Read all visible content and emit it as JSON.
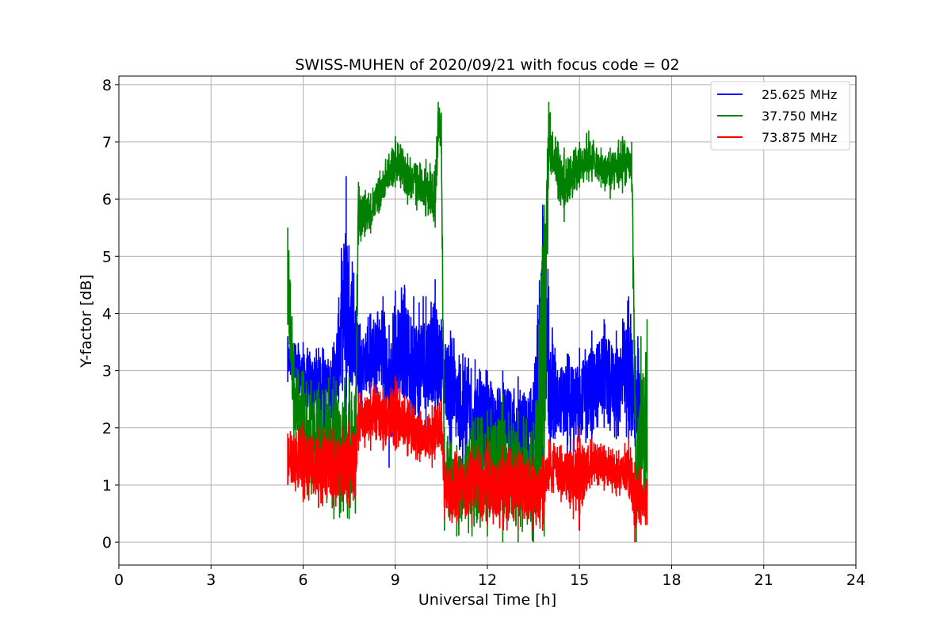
{
  "chart_data": {
    "type": "line",
    "title": "SWISS-MUHEN of 2020/09/21 with focus code = 02",
    "xlabel": "Universal Time [h]",
    "ylabel": "Y-factor [dB]",
    "xlim": [
      0,
      24
    ],
    "ylim": [
      -0.4,
      8.15
    ],
    "xticks": [
      0,
      3,
      6,
      9,
      12,
      15,
      18,
      21,
      24
    ],
    "yticks": [
      0,
      1,
      2,
      3,
      4,
      5,
      6,
      7,
      8
    ],
    "grid": true,
    "legend_position": "top-right",
    "series": [
      {
        "name": "25.625 MHz",
        "color": "#0000ff",
        "envelope": [
          [
            5.5,
            2.8,
            3.6
          ],
          [
            6.0,
            2.2,
            3.5
          ],
          [
            6.5,
            2.0,
            3.4
          ],
          [
            7.0,
            1.9,
            3.5
          ],
          [
            7.4,
            2.2,
            6.4
          ],
          [
            7.8,
            2.4,
            3.8
          ],
          [
            8.2,
            2.4,
            4.0
          ],
          [
            8.6,
            2.5,
            4.3
          ],
          [
            8.8,
            1.3,
            3.8
          ],
          [
            9.0,
            2.3,
            4.4
          ],
          [
            9.3,
            2.2,
            4.5
          ],
          [
            9.6,
            1.8,
            4.3
          ],
          [
            10.0,
            2.0,
            4.3
          ],
          [
            10.3,
            2.1,
            4.6
          ],
          [
            10.5,
            2.2,
            3.9
          ],
          [
            10.8,
            1.6,
            3.7
          ],
          [
            11.2,
            1.3,
            3.3
          ],
          [
            11.6,
            1.1,
            3.2
          ],
          [
            12.0,
            1.3,
            3.0
          ],
          [
            12.5,
            1.1,
            3.0
          ],
          [
            13.0,
            1.0,
            2.9
          ],
          [
            13.5,
            1.0,
            2.8
          ],
          [
            13.8,
            1.0,
            5.9
          ],
          [
            14.2,
            1.8,
            3.4
          ],
          [
            14.6,
            1.5,
            3.3
          ],
          [
            15.0,
            1.6,
            3.4
          ],
          [
            15.4,
            1.8,
            3.7
          ],
          [
            15.8,
            2.0,
            3.9
          ],
          [
            16.2,
            1.8,
            3.7
          ],
          [
            16.6,
            1.6,
            4.3
          ],
          [
            16.9,
            1.4,
            3.6
          ],
          [
            17.2,
            1.2,
            2.0
          ]
        ]
      },
      {
        "name": "37.750 MHz",
        "color": "#008000",
        "envelope": [
          [
            5.5,
            3.8,
            5.5
          ],
          [
            5.7,
            1.5,
            3.3
          ],
          [
            6.0,
            0.8,
            3.0
          ],
          [
            6.5,
            0.6,
            2.8
          ],
          [
            7.0,
            0.4,
            2.9
          ],
          [
            7.5,
            0.4,
            2.9
          ],
          [
            7.7,
            0.5,
            2.6
          ],
          [
            7.8,
            5.2,
            6.3
          ],
          [
            8.2,
            5.4,
            6.1
          ],
          [
            8.5,
            5.8,
            6.5
          ],
          [
            9.0,
            6.2,
            7.1
          ],
          [
            9.4,
            5.9,
            6.8
          ],
          [
            9.7,
            5.8,
            6.6
          ],
          [
            10.0,
            5.7,
            6.7
          ],
          [
            10.3,
            5.5,
            6.6
          ],
          [
            10.4,
            7.0,
            7.7
          ],
          [
            10.5,
            6.8,
            7.5
          ],
          [
            10.6,
            0.2,
            2.0
          ],
          [
            11.0,
            0.1,
            1.7
          ],
          [
            11.5,
            0.1,
            2.2
          ],
          [
            12.0,
            0.1,
            2.3
          ],
          [
            12.5,
            0.0,
            2.6
          ],
          [
            13.0,
            0.0,
            2.3
          ],
          [
            13.5,
            0.0,
            2.1
          ],
          [
            13.85,
            0.1,
            5.9
          ],
          [
            14.0,
            6.5,
            7.7
          ],
          [
            14.3,
            6.0,
            7.0
          ],
          [
            14.5,
            5.6,
            6.9
          ],
          [
            15.0,
            6.2,
            7.0
          ],
          [
            15.3,
            6.3,
            7.2
          ],
          [
            15.7,
            6.2,
            6.9
          ],
          [
            16.0,
            6.0,
            6.9
          ],
          [
            16.4,
            6.1,
            7.1
          ],
          [
            16.7,
            6.2,
            7.0
          ],
          [
            16.85,
            0.0,
            1.8
          ],
          [
            17.0,
            0.3,
            3.6
          ],
          [
            17.2,
            0.8,
            3.9
          ]
        ]
      },
      {
        "name": "73.875 MHz",
        "color": "#ff0000",
        "envelope": [
          [
            5.5,
            1.0,
            1.9
          ],
          [
            6.0,
            0.7,
            2.1
          ],
          [
            6.5,
            0.6,
            2.0
          ],
          [
            7.0,
            0.6,
            2.0
          ],
          [
            7.5,
            0.6,
            2.1
          ],
          [
            7.7,
            0.8,
            1.9
          ],
          [
            7.8,
            1.6,
            2.6
          ],
          [
            8.2,
            1.6,
            2.8
          ],
          [
            8.6,
            1.6,
            2.7
          ],
          [
            9.0,
            1.6,
            2.9
          ],
          [
            9.4,
            1.5,
            2.5
          ],
          [
            9.8,
            1.4,
            2.3
          ],
          [
            10.2,
            1.3,
            2.4
          ],
          [
            10.5,
            1.6,
            2.5
          ],
          [
            10.6,
            0.4,
            1.6
          ],
          [
            11.0,
            0.3,
            1.6
          ],
          [
            11.5,
            0.3,
            1.7
          ],
          [
            12.0,
            0.3,
            1.8
          ],
          [
            12.5,
            0.2,
            1.7
          ],
          [
            13.0,
            0.2,
            1.6
          ],
          [
            13.5,
            0.2,
            1.5
          ],
          [
            13.8,
            0.2,
            1.5
          ],
          [
            14.0,
            0.9,
            1.8
          ],
          [
            14.4,
            0.7,
            1.7
          ],
          [
            14.8,
            0.4,
            1.8
          ],
          [
            15.0,
            0.2,
            2.0
          ],
          [
            15.4,
            1.0,
            1.8
          ],
          [
            15.8,
            0.9,
            1.7
          ],
          [
            16.2,
            0.8,
            1.6
          ],
          [
            16.6,
            0.8,
            1.8
          ],
          [
            16.8,
            0.0,
            1.4
          ],
          [
            17.0,
            0.3,
            1.3
          ],
          [
            17.2,
            0.3,
            1.1
          ]
        ]
      }
    ]
  }
}
